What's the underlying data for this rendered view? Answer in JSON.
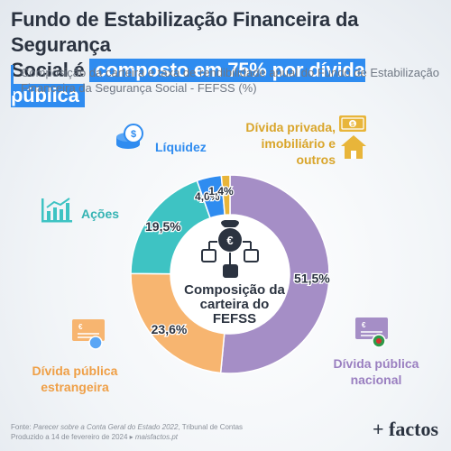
{
  "title": {
    "line1": "Fundo de Estabilização Financeira da Segurança",
    "line2_plain": "Social é",
    "line2_highlight": "composto em 75% por dívida pública"
  },
  "subtitle": "Composição da carteira e taxa de rendibilidade anual do Fundo de Estabilização Financeira da Segurança Social - FEFSS (%)",
  "center_label": [
    "Composição da",
    "carteira do",
    "FEFSS"
  ],
  "footer": {
    "source_prefix": "Fonte: ",
    "source_italic": "Parecer sobre a Conta Geral do Estado 2022",
    "source_suffix": ", Tribunal de Contas",
    "produced_prefix": "Produzido a 14 de fevereiro de 2024 ▸ ",
    "produced_italic": "maisfactos.pt"
  },
  "logo": "+ factos",
  "icons": [
    "money-bag-icon",
    "org-chart-icon",
    "banknote-icon",
    "house-icon",
    "coins-icon",
    "bar-chart-icon",
    "certificate-icon"
  ],
  "colors": {
    "divida_publica_nacional": "#a58ec6",
    "divida_publica_estrangeira": "#f7b570",
    "acoes": "#3ec3c3",
    "liquidez": "#2f8cf0",
    "divida_privada": "#e8b53a",
    "highlight": "#2f8cf0"
  },
  "chart_data": {
    "type": "pie",
    "donut": true,
    "start": "top",
    "direction": "clockwise",
    "categories": [
      "Dívida pública nacional",
      "Dívida pública estrangeira",
      "Ações",
      "Líquidez",
      "Dívida privada, imobiliário e outros"
    ],
    "values": [
      51.5,
      23.6,
      19.5,
      4.0,
      1.4
    ],
    "value_labels": [
      "51,5%",
      "23,6%",
      "19,5%",
      "4,0%",
      "1,4%"
    ],
    "category_labels": [
      [
        "Dívida pública",
        "nacional"
      ],
      [
        "Dívida pública",
        "estrangeira"
      ],
      [
        "Ações"
      ],
      [
        "Líquidez"
      ],
      [
        "Dívida privada,",
        "imobiliário e outros"
      ]
    ]
  }
}
